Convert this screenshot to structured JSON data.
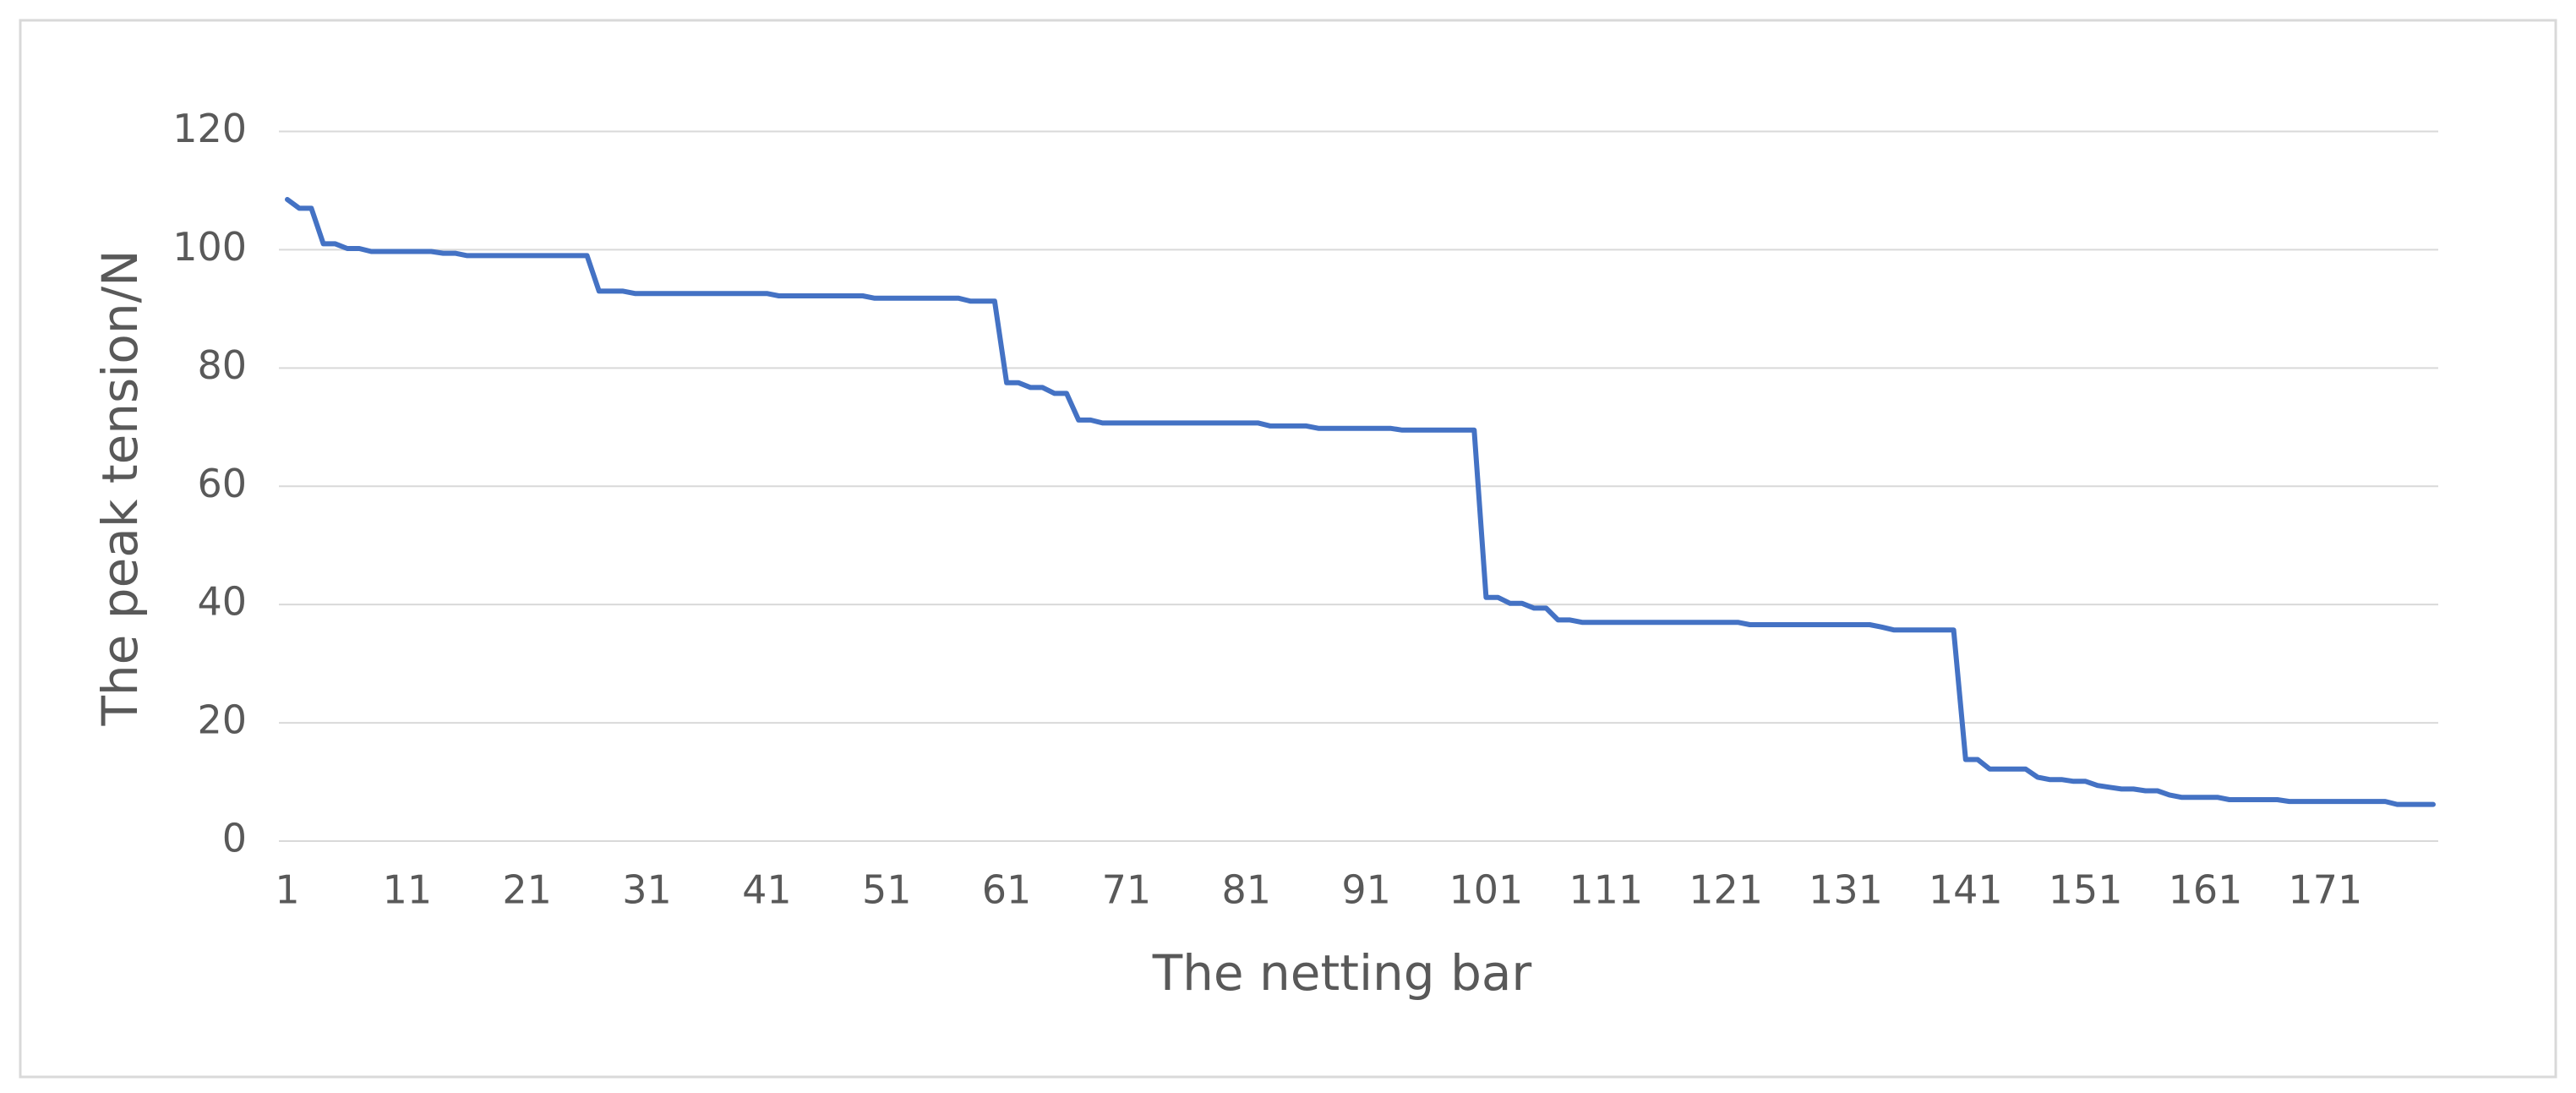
{
  "chart_data": {
    "type": "line",
    "x_label": "The netting bar",
    "y_label": "The peak tension/N",
    "categories": [
      "1",
      null,
      null,
      null,
      null,
      null,
      null,
      null,
      null,
      null,
      "11",
      null,
      null,
      null,
      null,
      null,
      null,
      null,
      null,
      null,
      "21",
      null,
      null,
      null,
      null,
      null,
      null,
      null,
      null,
      null,
      "31",
      null,
      null,
      null,
      null,
      null,
      null,
      null,
      null,
      null,
      "41",
      null,
      null,
      null,
      null,
      null,
      null,
      null,
      null,
      null,
      "51",
      null,
      null,
      null,
      null,
      null,
      null,
      null,
      null,
      null,
      "61",
      null,
      null,
      null,
      null,
      null,
      null,
      null,
      null,
      null,
      "71",
      null,
      null,
      null,
      null,
      null,
      null,
      null,
      null,
      null,
      "81",
      null,
      null,
      null,
      null,
      null,
      null,
      null,
      null,
      null,
      "91",
      null,
      null,
      null,
      null,
      null,
      null,
      null,
      null,
      null,
      "101",
      null,
      null,
      null,
      null,
      null,
      null,
      null,
      null,
      null,
      "111",
      null,
      null,
      null,
      null,
      null,
      null,
      null,
      null,
      null,
      "121",
      null,
      null,
      null,
      null,
      null,
      null,
      null,
      null,
      null,
      "131",
      null,
      null,
      null,
      null,
      null,
      null,
      null,
      null,
      null,
      "141",
      null,
      null,
      null,
      null,
      null,
      null,
      null,
      null,
      null,
      "151",
      null,
      null,
      null,
      null,
      null,
      null,
      null,
      null,
      null,
      "161",
      null,
      null,
      null,
      null,
      null,
      null,
      null,
      null,
      null,
      "171",
      null,
      null,
      null,
      null,
      null,
      null,
      null,
      null,
      null
    ],
    "series": [
      {
        "color": "#4472c4",
        "values": [
          108.5,
          107,
          107,
          101,
          101,
          100.2,
          100.2,
          99.7,
          99.7,
          99.7,
          99.7,
          99.7,
          99.7,
          99.4,
          99.4,
          99,
          99,
          99,
          99,
          99,
          99,
          99,
          99,
          99,
          99,
          99,
          93,
          93,
          93,
          92.6,
          92.6,
          92.6,
          92.6,
          92.6,
          92.6,
          92.6,
          92.6,
          92.6,
          92.6,
          92.6,
          92.6,
          92.2,
          92.2,
          92.2,
          92.2,
          92.2,
          92.2,
          92.2,
          92.2,
          91.8,
          91.8,
          91.8,
          91.8,
          91.8,
          91.8,
          91.8,
          91.8,
          91.3,
          91.3,
          91.3,
          77.5,
          77.5,
          76.7,
          76.7,
          75.7,
          75.7,
          71.2,
          71.2,
          70.7,
          70.7,
          70.7,
          70.7,
          70.7,
          70.7,
          70.7,
          70.7,
          70.7,
          70.7,
          70.7,
          70.7,
          70.7,
          70.7,
          70.2,
          70.2,
          70.2,
          70.2,
          69.8,
          69.8,
          69.8,
          69.8,
          69.8,
          69.8,
          69.8,
          69.5,
          69.5,
          69.5,
          69.5,
          69.5,
          69.5,
          69.5,
          41.2,
          41.2,
          40.2,
          40.2,
          39.4,
          39.4,
          37.4,
          37.4,
          37,
          37,
          37,
          37,
          37,
          37,
          37,
          37,
          37,
          37,
          37,
          37,
          37,
          37,
          36.6,
          36.6,
          36.6,
          36.6,
          36.6,
          36.6,
          36.6,
          36.6,
          36.6,
          36.6,
          36.6,
          36.2,
          35.7,
          35.7,
          35.7,
          35.7,
          35.7,
          35.7,
          13.8,
          13.8,
          12.2,
          12.2,
          12.2,
          12.2,
          10.8,
          10.4,
          10.4,
          10.1,
          10.1,
          9.4,
          9.1,
          8.8,
          8.8,
          8.5,
          8.5,
          7.8,
          7.4,
          7.4,
          7.4,
          7.4,
          7,
          7,
          7,
          7,
          7,
          6.7,
          6.7,
          6.7,
          6.7,
          6.7,
          6.7,
          6.7,
          6.7,
          6.7,
          6.2,
          6.2,
          6.2,
          6.2
        ]
      }
    ],
    "ylim": [
      0,
      120
    ],
    "yticks": [
      0,
      20,
      40,
      60,
      80,
      100,
      120
    ],
    "grid": true
  }
}
